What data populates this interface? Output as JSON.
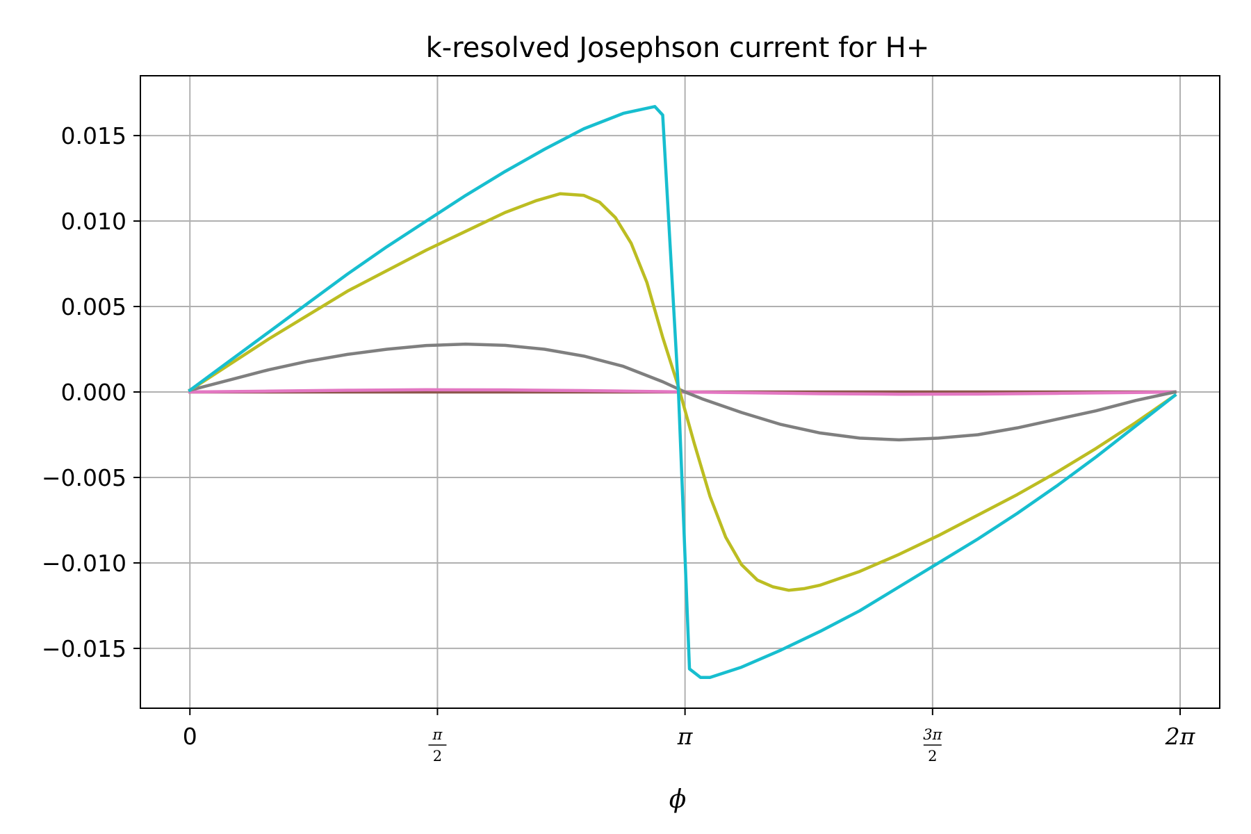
{
  "chart_data": {
    "type": "line",
    "title": "k-resolved Josephson current for H+",
    "xlabel": "ϕ",
    "ylabel": "",
    "xlim": [
      -0.3142,
      6.5345
    ],
    "ylim": [
      -0.0185,
      0.0185
    ],
    "grid": true,
    "x_ticks": [
      {
        "value": 0,
        "label": "0"
      },
      {
        "value": 1.5708,
        "num": "π",
        "den": "2"
      },
      {
        "value": 3.1416,
        "label": "π"
      },
      {
        "value": 4.7124,
        "num": "3π",
        "den": "2"
      },
      {
        "value": 6.2832,
        "label": "2π"
      }
    ],
    "y_ticks": [
      {
        "value": 0.015,
        "label": "0.015"
      },
      {
        "value": 0.01,
        "label": "0.010"
      },
      {
        "value": 0.005,
        "label": "0.005"
      },
      {
        "value": 0.0,
        "label": "0.000"
      },
      {
        "value": -0.005,
        "label": "−0.005"
      },
      {
        "value": -0.01,
        "label": "−0.010"
      },
      {
        "value": -0.015,
        "label": "−0.015"
      }
    ],
    "series": [
      {
        "color": "#8c564b",
        "x": [
          0,
          6.25
        ],
        "y": [
          0,
          0
        ]
      },
      {
        "color": "#e377c2",
        "x": [
          0,
          0.5,
          1.0,
          1.5,
          2.0,
          2.5,
          3.0,
          3.1416,
          3.5,
          4.0,
          4.5,
          5.0,
          5.5,
          6.0,
          6.25
        ],
        "y": [
          0.0,
          5e-05,
          0.0001,
          0.00013,
          0.00012,
          8e-05,
          2e-05,
          0.0,
          -4e-05,
          -0.0001,
          -0.00013,
          -0.00012,
          -8e-05,
          -3e-05,
          0.0
        ]
      },
      {
        "color": "#7f7f7f",
        "x": [
          0,
          0.25,
          0.5,
          0.75,
          1.0,
          1.25,
          1.5,
          1.75,
          2.0,
          2.25,
          2.5,
          2.75,
          3.0,
          3.1416,
          3.25,
          3.5,
          3.75,
          4.0,
          4.25,
          4.5,
          4.75,
          5.0,
          5.25,
          5.5,
          5.75,
          6.0,
          6.25
        ],
        "y": [
          0.0001,
          0.0007,
          0.0013,
          0.0018,
          0.0022,
          0.0025,
          0.00272,
          0.0028,
          0.00273,
          0.0025,
          0.0021,
          0.0015,
          0.0006,
          0.0,
          -0.0004,
          -0.0012,
          -0.0019,
          -0.0024,
          -0.0027,
          -0.0028,
          -0.0027,
          -0.0025,
          -0.0021,
          -0.0016,
          -0.0011,
          -0.0005,
          0.0
        ]
      },
      {
        "color": "#bcbd22",
        "x": [
          0,
          0.25,
          0.5,
          0.75,
          1.0,
          1.25,
          1.5,
          1.75,
          2.0,
          2.2,
          2.35,
          2.5,
          2.6,
          2.7,
          2.8,
          2.9,
          3.0,
          3.1,
          3.2,
          3.3,
          3.4,
          3.5,
          3.6,
          3.7,
          3.8,
          3.9,
          4.0,
          4.25,
          4.5,
          4.75,
          5.0,
          5.25,
          5.5,
          5.75,
          6.0,
          6.25
        ],
        "y": [
          0.0001,
          0.0016,
          0.0031,
          0.0045,
          0.0059,
          0.0071,
          0.0083,
          0.0094,
          0.0105,
          0.0112,
          0.0116,
          0.0115,
          0.0111,
          0.0102,
          0.0087,
          0.0064,
          0.0032,
          0.0003,
          -0.003,
          -0.0061,
          -0.0085,
          -0.0101,
          -0.011,
          -0.0114,
          -0.0116,
          -0.0115,
          -0.0113,
          -0.0105,
          -0.0095,
          -0.0084,
          -0.0072,
          -0.006,
          -0.0047,
          -0.0033,
          -0.0018,
          -0.0002
        ]
      },
      {
        "color": "#17becf",
        "x": [
          0,
          0.25,
          0.5,
          0.75,
          1.0,
          1.25,
          1.5,
          1.75,
          2.0,
          2.25,
          2.5,
          2.75,
          2.95,
          3.0,
          3.1,
          3.17,
          3.24,
          3.3,
          3.5,
          3.75,
          4.0,
          4.25,
          4.5,
          4.75,
          5.0,
          5.25,
          5.5,
          5.75,
          6.0,
          6.25
        ],
        "y": [
          0.0001,
          0.0018,
          0.0035,
          0.0052,
          0.0069,
          0.0085,
          0.01,
          0.0115,
          0.0129,
          0.0142,
          0.0154,
          0.0163,
          0.0167,
          0.0162,
          0.0,
          -0.0162,
          -0.0167,
          -0.0167,
          -0.0161,
          -0.0151,
          -0.014,
          -0.0128,
          -0.0114,
          -0.01,
          -0.0086,
          -0.0071,
          -0.0055,
          -0.0038,
          -0.002,
          -0.0002
        ]
      }
    ]
  }
}
